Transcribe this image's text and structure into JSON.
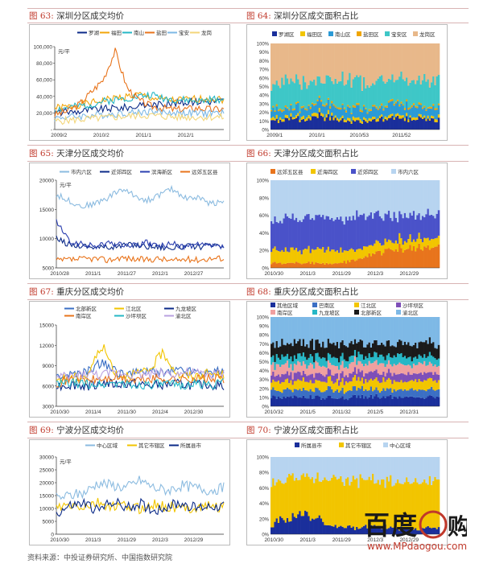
{
  "source": "资料来源：中投证券研究所、中国指数研究院",
  "watermark": {
    "logo": "百度购",
    "url": "www.MPdaogou.com"
  },
  "chart_data": [
    {
      "type": "line",
      "num": "图 63:",
      "title": "深圳分区成交均价",
      "unit": "元/平",
      "legend": [
        "罗湖",
        "福田",
        "南山",
        "盐田",
        "宝安",
        "龙岗"
      ],
      "colors": [
        "#0b2a88",
        "#f2a50a",
        "#26b7c6",
        "#e8741c",
        "#7eb9e6",
        "#f3d67a"
      ],
      "x_ticks": [
        "2009/2",
        "2010/2",
        "2011/1",
        "2012/1"
      ],
      "y_ticks": [
        "-",
        "20,000",
        "40,000",
        "60,000",
        "80,000",
        "100,000"
      ],
      "ylim": [
        0,
        100000
      ],
      "series": [
        {
          "name": "罗湖",
          "values": [
            20000,
            21000,
            22000,
            24000,
            25000,
            26000,
            27000,
            28000,
            30000,
            31000,
            32000,
            33000,
            34000,
            34000,
            35000
          ]
        },
        {
          "name": "福田",
          "values": [
            26000,
            27000,
            30000,
            32000,
            35000,
            38000,
            40000,
            42000,
            38000,
            36000,
            35000,
            36000,
            37000,
            38000,
            36000
          ]
        },
        {
          "name": "南山",
          "values": [
            24000,
            26000,
            28000,
            30000,
            34000,
            36000,
            38000,
            40000,
            42000,
            38000,
            36000,
            35000,
            34000,
            36000,
            37000
          ]
        },
        {
          "name": "盐田",
          "values": [
            18000,
            22000,
            30000,
            45000,
            60000,
            95000,
            50000,
            35000,
            28000,
            26000,
            24000,
            25000,
            26000,
            24000,
            25000
          ]
        },
        {
          "name": "宝安",
          "values": [
            14000,
            15000,
            16000,
            17000,
            18000,
            19000,
            20000,
            21000,
            22000,
            21000,
            20000,
            20000,
            19000,
            20000,
            20000
          ]
        },
        {
          "name": "龙岗",
          "values": [
            10000,
            11000,
            12000,
            13000,
            14000,
            15000,
            16000,
            17000,
            17000,
            16000,
            15000,
            15000,
            15000,
            15000,
            15000
          ]
        }
      ]
    },
    {
      "type": "area",
      "num": "图 64:",
      "title": "深圳分区成交面积占比",
      "legend": [
        "罗湖区",
        "福田区",
        "南山区",
        "盐田区",
        "宝安区",
        "龙岗区"
      ],
      "colors": [
        "#1a2f9b",
        "#f2c500",
        "#2b9ad6",
        "#f0a500",
        "#3ec7c7",
        "#e8b88a"
      ],
      "x_ticks": [
        "2009/1",
        "2010/1",
        "2010/53",
        "2011/52"
      ],
      "y_ticks": [
        "0%",
        "10%",
        "20%",
        "30%",
        "40%",
        "50%",
        "60%",
        "70%",
        "80%",
        "90%",
        "100%"
      ],
      "series": [
        {
          "name": "罗湖区",
          "values": [
            0.1,
            0.12,
            0.15,
            0.1,
            0.08,
            0.14,
            0.12,
            0.1
          ]
        },
        {
          "name": "福田区",
          "values": [
            0.03,
            0.03,
            0.04,
            0.03,
            0.03,
            0.03,
            0.03,
            0.03
          ]
        },
        {
          "name": "南山区",
          "values": [
            0.08,
            0.1,
            0.1,
            0.12,
            0.1,
            0.12,
            0.1,
            0.11
          ]
        },
        {
          "name": "盐田区",
          "values": [
            0.02,
            0.02,
            0.02,
            0.02,
            0.02,
            0.02,
            0.02,
            0.02
          ]
        },
        {
          "name": "宝安区",
          "values": [
            0.3,
            0.28,
            0.25,
            0.3,
            0.32,
            0.28,
            0.3,
            0.3
          ]
        },
        {
          "name": "龙岗区",
          "values": [
            0.47,
            0.45,
            0.44,
            0.43,
            0.45,
            0.41,
            0.45,
            0.44
          ]
        }
      ]
    },
    {
      "type": "line",
      "num": "图 65:",
      "title": "天津分区成交均价",
      "unit": "元/平",
      "legend": [
        "市内六区",
        "近郊四区",
        "滨海新区",
        "远郊五区县"
      ],
      "colors": [
        "#8bbbe0",
        "#0b2a88",
        "#2b3fb0",
        "#e8741c"
      ],
      "x_ticks": [
        "2010/28",
        "2011/1",
        "2011/27",
        "2012/1",
        "2012/27"
      ],
      "y_ticks": [
        "5000",
        "10000",
        "15000",
        "20000"
      ],
      "ylim": [
        5000,
        20000
      ],
      "series": [
        {
          "name": "市内六区",
          "values": [
            17500,
            16500,
            15500,
            16000,
            17000,
            18500,
            17500,
            16500,
            17500,
            18500,
            17000,
            17000,
            16000,
            16500
          ]
        },
        {
          "name": "近郊四区",
          "values": [
            10000,
            9000,
            8800,
            8600,
            8500,
            8800,
            9000,
            8700,
            8600,
            8400,
            8700,
            8600,
            8800,
            8600
          ]
        },
        {
          "name": "滨海新区",
          "values": [
            13000,
            9500,
            9000,
            8700,
            9200,
            9000,
            8800,
            9300,
            8700,
            9100,
            8600,
            8900,
            8700,
            8600
          ]
        },
        {
          "name": "远郊五区县",
          "values": [
            6200,
            6400,
            6500,
            6600,
            6300,
            6800,
            6500,
            6400,
            6600,
            6200,
            6500,
            6400,
            6600,
            6700
          ]
        }
      ]
    },
    {
      "type": "area",
      "num": "图 66:",
      "title": "天津分区成交面积占比",
      "legend": [
        "远郊五区县",
        "近海四区",
        "近郊四区",
        "市内六区"
      ],
      "colors": [
        "#e8741c",
        "#f2c500",
        "#4a52c9",
        "#b7d4f0"
      ],
      "x_ticks": [
        "2010/30",
        "2011/3",
        "2011/29",
        "2012/3",
        "2012/29"
      ],
      "y_ticks": [
        "0%",
        "20%",
        "40%",
        "60%",
        "80%",
        "100%"
      ],
      "series": [
        {
          "name": "远郊五区县",
          "values": [
            0.05,
            0.06,
            0.05,
            0.08,
            0.2,
            0.22,
            0.24
          ]
        },
        {
          "name": "近海四区",
          "values": [
            0.15,
            0.14,
            0.16,
            0.12,
            0.1,
            0.1,
            0.1
          ]
        },
        {
          "name": "近郊四区",
          "values": [
            0.35,
            0.36,
            0.35,
            0.38,
            0.3,
            0.28,
            0.27
          ]
        },
        {
          "name": "市内六区",
          "values": [
            0.45,
            0.44,
            0.44,
            0.42,
            0.4,
            0.4,
            0.39
          ]
        }
      ]
    },
    {
      "type": "line",
      "num": "图 67:",
      "title": "重庆分区成交均价",
      "legend": [
        "北部新区",
        "江北区",
        "九龙坡区",
        "南岸区",
        "沙坪坝区",
        "渝北区"
      ],
      "colors": [
        "#3b6fc4",
        "#f2c500",
        "#0b2a88",
        "#e8741c",
        "#26b7c6",
        "#b9a0e0"
      ],
      "x_ticks": [
        "2010/30",
        "2011/4",
        "2011/30",
        "2012/4",
        "2012/30"
      ],
      "y_ticks": [
        "3000",
        "6000",
        "9000",
        "12000",
        "15000"
      ],
      "ylim": [
        3000,
        15000
      ],
      "series": [
        {
          "name": "北部新区",
          "values": [
            7500,
            7600,
            8000,
            9500,
            8000,
            7800,
            8200,
            8000,
            8400,
            8200,
            8000,
            8300
          ]
        },
        {
          "name": "江北区",
          "values": [
            7000,
            7200,
            7500,
            12000,
            7500,
            7800,
            8000,
            11000,
            7600,
            7400,
            7800,
            7600
          ]
        },
        {
          "name": "九龙坡区",
          "values": [
            6000,
            6200,
            6000,
            6500,
            6200,
            6400,
            6000,
            6200,
            6300,
            6100,
            6200,
            6000
          ]
        },
        {
          "name": "南岸区",
          "values": [
            6500,
            7000,
            6800,
            7000,
            7200,
            6800,
            7000,
            7100,
            6900,
            7200,
            7000,
            7100
          ]
        },
        {
          "name": "沙坪坝区",
          "values": [
            6200,
            6400,
            6300,
            6200,
            6500,
            6000,
            6300,
            6200,
            6100,
            6300,
            6200,
            6400
          ]
        },
        {
          "name": "渝北区",
          "values": [
            7200,
            7400,
            7800,
            7600,
            8000,
            7800,
            7700,
            8000,
            7800,
            7900,
            7700,
            7800
          ]
        }
      ]
    },
    {
      "type": "area",
      "num": "图 68:",
      "title": "重庆分区成交面积占比",
      "legend": [
        "其他区域",
        "巴南区",
        "江北区",
        "沙坪坝区",
        "南岸区",
        "九龙坡区",
        "北部新区",
        "渝北区"
      ],
      "colors": [
        "#1a2f9b",
        "#3b6fc4",
        "#f2c500",
        "#7e4fb8",
        "#f0a0a0",
        "#26b7c6",
        "#1a1a1a",
        "#7eb9e6"
      ],
      "x_ticks": [
        "2010/32",
        "2011/5",
        "2011/32",
        "2012/5",
        "2012/31"
      ],
      "y_ticks": [
        "0%",
        "10%",
        "20%",
        "30%",
        "40%",
        "50%",
        "60%",
        "70%",
        "80%",
        "90%",
        "100%"
      ],
      "series": [
        {
          "name": "其他区域",
          "values": [
            0.1,
            0.1,
            0.1,
            0.11,
            0.1,
            0.1
          ]
        },
        {
          "name": "巴南区",
          "values": [
            0.08,
            0.08,
            0.09,
            0.08,
            0.08,
            0.08
          ]
        },
        {
          "name": "江北区",
          "values": [
            0.1,
            0.1,
            0.1,
            0.1,
            0.1,
            0.1
          ]
        },
        {
          "name": "沙坪坝区",
          "values": [
            0.08,
            0.08,
            0.08,
            0.08,
            0.08,
            0.08
          ]
        },
        {
          "name": "南岸区",
          "values": [
            0.1,
            0.1,
            0.1,
            0.1,
            0.1,
            0.1
          ]
        },
        {
          "name": "九龙坡区",
          "values": [
            0.09,
            0.09,
            0.08,
            0.09,
            0.09,
            0.09
          ]
        },
        {
          "name": "北部新区",
          "values": [
            0.15,
            0.15,
            0.15,
            0.14,
            0.15,
            0.15
          ]
        },
        {
          "name": "渝北区",
          "values": [
            0.3,
            0.3,
            0.3,
            0.3,
            0.3,
            0.3
          ]
        }
      ]
    },
    {
      "type": "line",
      "num": "图 69:",
      "title": "宁波分区成交均价",
      "unit": "元/平",
      "legend": [
        "中心区域",
        "其它市辖区",
        "所属县市"
      ],
      "colors": [
        "#8bbbe0",
        "#f2c500",
        "#0b2a88"
      ],
      "x_ticks": [
        "2010/30",
        "2011/3",
        "2011/29",
        "2012/3",
        "2012/29"
      ],
      "y_ticks": [
        "0",
        "5000",
        "10000",
        "15000",
        "20000",
        "25000",
        "30000"
      ],
      "ylim": [
        0,
        30000
      ],
      "series": [
        {
          "name": "中心区域",
          "values": [
            14000,
            15000,
            16000,
            20000,
            19000,
            18000,
            21000,
            18000,
            17000,
            19000,
            18000,
            17000,
            18000
          ]
        },
        {
          "name": "其它市辖区",
          "values": [
            10000,
            11000,
            10500,
            12000,
            10500,
            11000,
            10000,
            11500,
            10500,
            10000,
            10500,
            11000,
            10500
          ]
        },
        {
          "name": "所属县市",
          "values": [
            8000,
            11000,
            12000,
            9000,
            13000,
            10000,
            12000,
            9000,
            11000,
            12000,
            10000,
            11000,
            11000
          ]
        }
      ]
    },
    {
      "type": "area",
      "num": "图 70:",
      "title": "宁波分区成交面积占比",
      "legend": [
        "所属县市",
        "其它市辖区",
        "中心区域"
      ],
      "colors": [
        "#1a2f9b",
        "#f2c500",
        "#b7d4f0"
      ],
      "x_ticks": [
        "2010/30",
        "2011/3",
        "2011/29",
        "2012/3",
        "2012/29"
      ],
      "y_ticks": [
        "0%",
        "20%",
        "40%",
        "60%",
        "80%",
        "100%"
      ],
      "series": [
        {
          "name": "所属县市",
          "values": [
            0.1,
            0.3,
            0.12,
            0.08,
            0.1,
            0.06,
            0.1
          ]
        },
        {
          "name": "其它市辖区",
          "values": [
            0.55,
            0.45,
            0.58,
            0.62,
            0.6,
            0.62,
            0.6
          ]
        },
        {
          "name": "中心区域",
          "values": [
            0.35,
            0.25,
            0.3,
            0.3,
            0.3,
            0.32,
            0.3
          ]
        }
      ]
    }
  ]
}
